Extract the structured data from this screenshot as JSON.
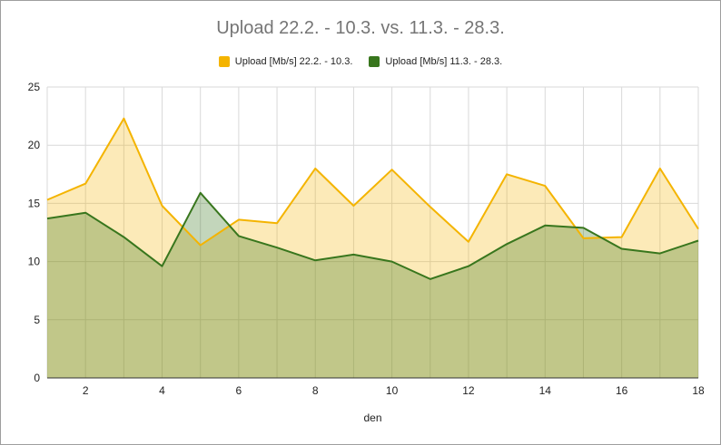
{
  "chart_data": {
    "type": "area",
    "title": "Upload 22.2. - 10.3. vs. 11.3. - 28.3.",
    "xlabel": "den",
    "ylabel": "",
    "x": [
      1,
      2,
      3,
      4,
      5,
      6,
      7,
      8,
      9,
      10,
      11,
      12,
      13,
      14,
      15,
      16,
      17,
      18
    ],
    "xticks": [
      2,
      4,
      6,
      8,
      10,
      12,
      14,
      16,
      18
    ],
    "yticks": [
      0,
      5,
      10,
      15,
      20,
      25
    ],
    "xlim": [
      1,
      18
    ],
    "ylim": [
      0,
      25
    ],
    "grid": true,
    "legend_position": "top",
    "series": [
      {
        "name": "Upload [Mb/s] 22.2. - 10.3.",
        "color": "#f4b400",
        "fill": "#fde9b0",
        "values": [
          15.3,
          16.7,
          22.3,
          14.8,
          11.4,
          13.6,
          13.3,
          18.0,
          14.8,
          17.9,
          14.7,
          11.7,
          17.5,
          16.5,
          12.0,
          12.1,
          18.0,
          12.8
        ]
      },
      {
        "name": "Upload [Mb/s] 11.3. - 28.3.",
        "color": "#38761d",
        "fill": "#9fb578",
        "values": [
          13.7,
          14.2,
          12.1,
          9.6,
          15.9,
          12.2,
          11.2,
          10.1,
          10.6,
          10.0,
          8.5,
          9.6,
          11.5,
          13.1,
          12.9,
          11.1,
          10.7,
          11.8
        ]
      }
    ]
  }
}
